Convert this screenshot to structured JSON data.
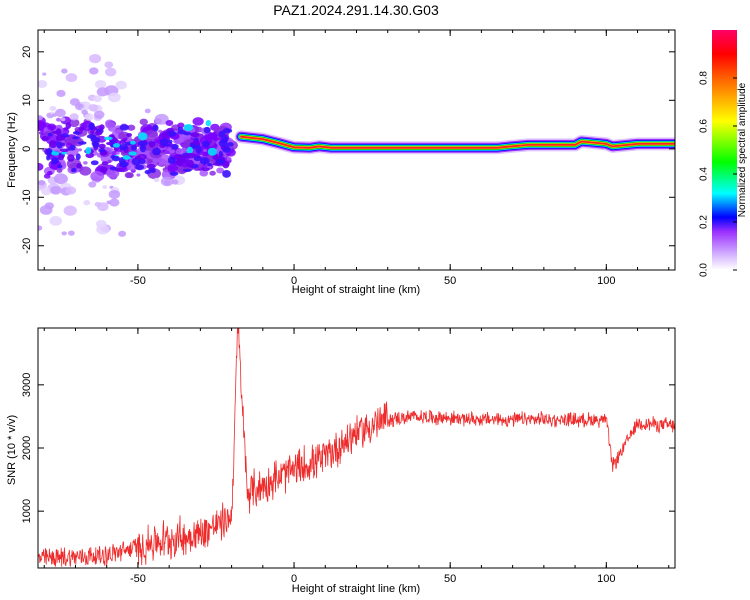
{
  "title": "PAZ1.2024.291.14.30.G03",
  "chart_data": [
    {
      "type": "heatmap",
      "xlabel": "Height of straight line (km)",
      "ylabel": "Frequency (Hz)",
      "xlim": [
        -82,
        122
      ],
      "ylim": [
        -25,
        24.5
      ],
      "xticks": [
        -50,
        0,
        50,
        100
      ],
      "yticks": [
        -20,
        -10,
        0,
        10,
        20
      ],
      "colorbar": {
        "label": "Normalized spectral amplitude",
        "range": [
          0,
          1
        ],
        "ticks": [
          0.0,
          0.2,
          0.4,
          0.6,
          0.8
        ],
        "colors": [
          "#ffffff",
          "#9b30ff",
          "#0000ff",
          "#00ffff",
          "#00ff00",
          "#ffff00",
          "#ff0000",
          "#ff0066"
        ]
      },
      "ridge": {
        "x": [
          -17,
          -10,
          -5,
          0,
          5,
          8,
          12,
          20,
          40,
          65,
          68,
          75,
          90,
          92,
          100,
          102,
          110,
          122
        ],
        "y": [
          2.5,
          2.0,
          1.2,
          0.3,
          0.2,
          0.5,
          0.2,
          0.2,
          0.2,
          0.2,
          0.4,
          0.8,
          0.8,
          1.5,
          1.0,
          0.5,
          1.0,
          1.0
        ]
      },
      "grid": false
    },
    {
      "type": "line",
      "xlabel": "Height of straight line (km)",
      "ylabel": "SNR (10 * v/v)",
      "xlim": [
        -82,
        122
      ],
      "ylim": [
        100,
        3900
      ],
      "xticks": [
        -50,
        0,
        50,
        100
      ],
      "yticks": [
        1000,
        2000,
        3000
      ],
      "color": "#ee2a2a",
      "trend": {
        "x": [
          -82,
          -60,
          -45,
          -30,
          -20,
          -18,
          -15,
          -10,
          0,
          10,
          20,
          30,
          40,
          60,
          80,
          100,
          102,
          110,
          122
        ],
        "y": [
          250,
          300,
          500,
          650,
          900,
          3900,
          1300,
          1400,
          1650,
          1850,
          2250,
          2450,
          2500,
          2450,
          2450,
          2450,
          1700,
          2400,
          2350
        ]
      },
      "grid": false
    }
  ]
}
